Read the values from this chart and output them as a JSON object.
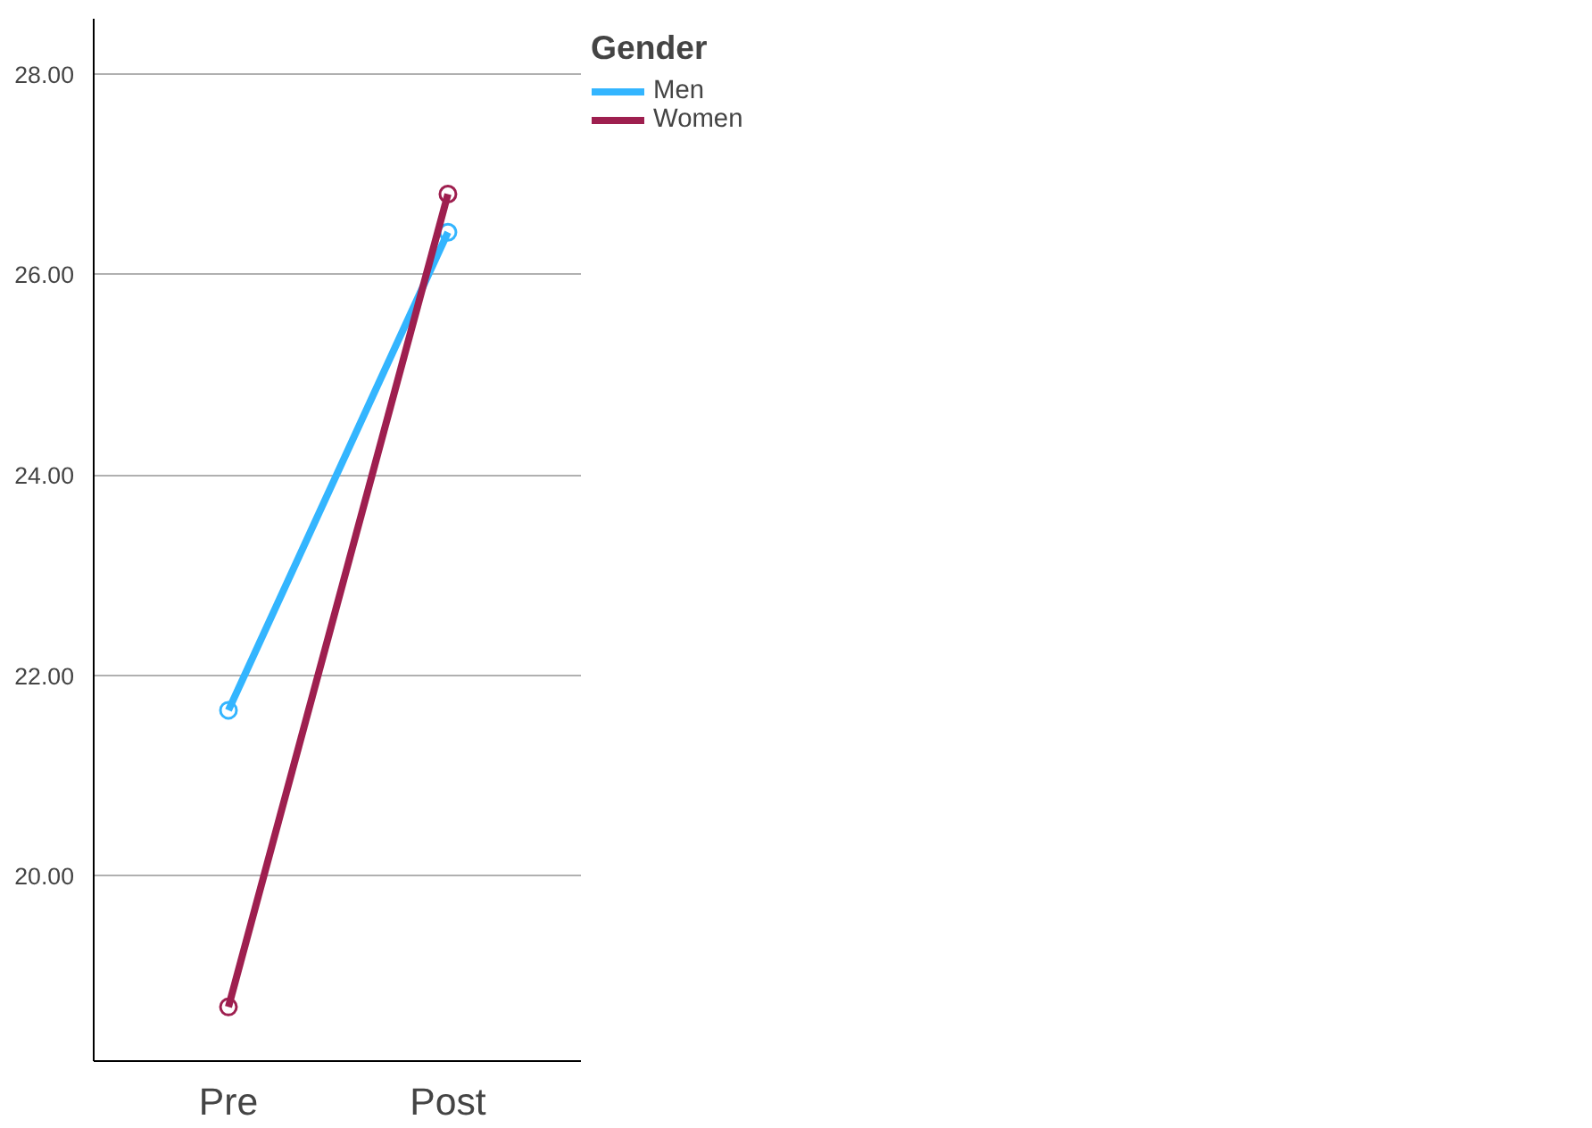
{
  "chart_data": {
    "type": "line",
    "legend_title": "Gender",
    "categories": [
      "Pre",
      "Post"
    ],
    "series": [
      {
        "name": "Men",
        "color": "#33b5ff",
        "values": [
          21.65,
          26.42
        ]
      },
      {
        "name": "Women",
        "color": "#9e1f4f",
        "values": [
          18.69,
          26.8
        ]
      }
    ],
    "ylim": [
      18.15,
      28.55
    ],
    "yticks": [
      {
        "value": 20,
        "label": "20.00"
      },
      {
        "value": 22,
        "label": "22.00"
      },
      {
        "value": 24,
        "label": "24.00"
      },
      {
        "value": 26,
        "label": "26.00"
      },
      {
        "value": 28,
        "label": "28.00"
      }
    ],
    "grid": "y",
    "legend": "top right",
    "marker": "circle",
    "line_style": "solid"
  }
}
